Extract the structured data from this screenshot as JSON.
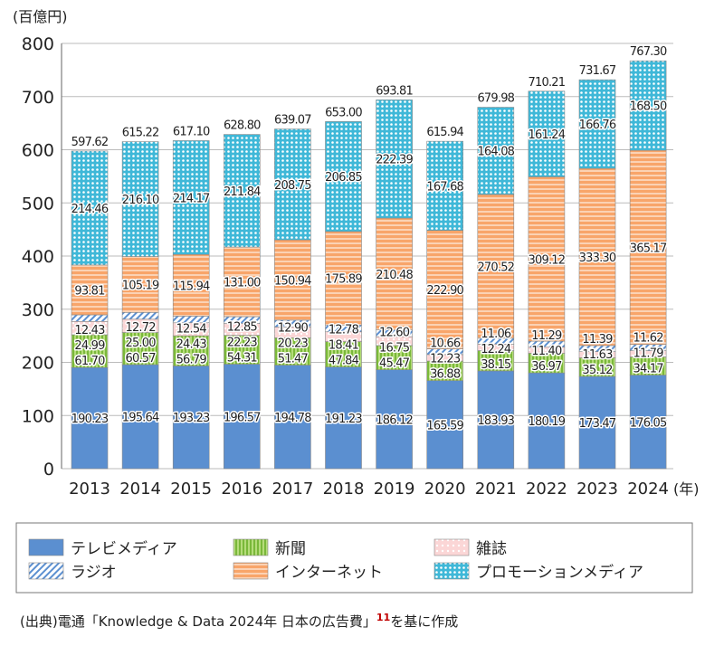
{
  "chart_data": {
    "type": "bar",
    "stacked": true,
    "unit_label": "(百億円)",
    "x_unit": "(年)",
    "categories": [
      "2013",
      "2014",
      "2015",
      "2016",
      "2017",
      "2018",
      "2019",
      "2020",
      "2021",
      "2022",
      "2023",
      "2024"
    ],
    "ylim": [
      0,
      800
    ],
    "yticks": [
      0,
      100,
      200,
      300,
      400,
      500,
      600,
      700,
      800
    ],
    "grid": true,
    "legend_position": "bottom",
    "series": [
      {
        "name": "テレビメディア",
        "color": "#5b8fd0",
        "pattern": "solid",
        "values": [
          190.23,
          195.64,
          193.23,
          196.57,
          194.78,
          191.23,
          186.12,
          165.59,
          183.93,
          180.19,
          173.47,
          176.05
        ]
      },
      {
        "name": "新聞",
        "color": "#8cc63f",
        "pattern": "vertical-stripes",
        "values": [
          61.7,
          60.57,
          56.79,
          54.31,
          51.47,
          47.84,
          45.47,
          36.88,
          38.15,
          36.97,
          35.12,
          34.17
        ]
      },
      {
        "name": "雑誌",
        "color": "#f4a7a7",
        "pattern": "dots",
        "values": [
          24.99,
          25.0,
          24.43,
          22.23,
          20.23,
          18.41,
          16.75,
          12.23,
          12.24,
          11.4,
          11.63,
          11.79
        ]
      },
      {
        "name": "ラジオ",
        "color": "#5b8fd0",
        "pattern": "diagonal-hatch",
        "values": [
          12.43,
          12.72,
          12.54,
          12.85,
          12.9,
          12.78,
          12.6,
          10.66,
          11.06,
          11.29,
          11.39,
          11.62
        ]
      },
      {
        "name": "インターネット",
        "color": "#f8a56a",
        "pattern": "horizontal-stripes",
        "values": [
          93.81,
          105.19,
          115.94,
          131.0,
          150.94,
          175.89,
          210.48,
          222.9,
          270.52,
          309.12,
          333.3,
          365.17
        ]
      },
      {
        "name": "プロモーションメディア",
        "color": "#3fb8d8",
        "pattern": "dots",
        "values": [
          214.46,
          216.1,
          214.17,
          211.84,
          208.75,
          206.85,
          222.39,
          167.68,
          164.08,
          161.24,
          166.76,
          168.5
        ]
      }
    ],
    "totals": [
      "597.62",
      "615.22",
      "617.10",
      "628.80",
      "639.07",
      "653.00",
      "693.81",
      "615.94",
      "679.98",
      "710.21",
      "731.67",
      "767.30"
    ],
    "legend_order": [
      "テレビメディア",
      "新聞",
      "雑誌",
      "ラジオ",
      "インターネット",
      "プロモーションメディア"
    ]
  },
  "source": {
    "text": "(出典)電通「Knowledge & Data 2024年 日本の広告費」",
    "footnote": "11",
    "suffix": "を基に作成"
  }
}
